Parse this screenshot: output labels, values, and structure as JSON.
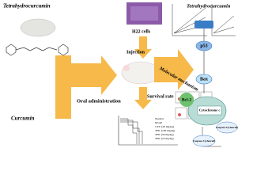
{
  "left": {
    "title": "Tetrahydrocurcumin",
    "route": "Oral administration",
    "compound": "Curcumin"
  },
  "middle": {
    "cells": "H22 cells",
    "step": "Injection",
    "outcome": "Survival rate",
    "mechanism": "Molecular mechanism"
  },
  "survival_legend": [
    "Normal",
    "Model",
    "5-FU (20 mg/kg)",
    "THC (100 mg/kg)",
    "THC (50 mg/kg)",
    "THC (25 mg/kg)"
  ],
  "pathway": {
    "title": "Tetrahydrocurcumin",
    "nodes": [
      "p53",
      "Bax",
      "Bcl-2",
      "Cytochrome c",
      "Caspase-9 (cleaved)",
      "Caspase-3 (cleaved)"
    ]
  }
}
